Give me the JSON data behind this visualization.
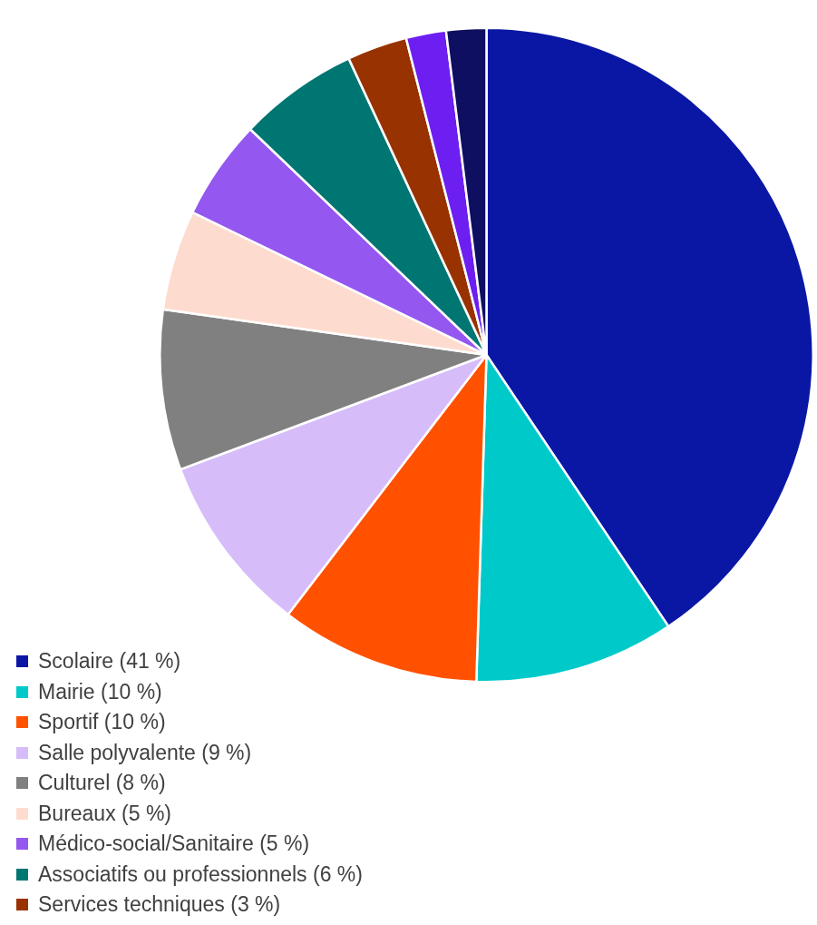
{
  "chart_data": {
    "type": "pie",
    "categories": [
      "Scolaire (41 %)",
      "Mairie (10 %)",
      "Sportif (10 %)",
      "Salle polyvalente (9 %)",
      "Culturel (8 %)",
      "Bureaux (5 %)",
      "Médico-social/Sanitaire (5 %)",
      "Associatifs ou professionnels (6 %)",
      "Services techniques (3 %)",
      null,
      null
    ],
    "values": [
      41,
      10,
      10,
      9,
      8,
      5,
      5,
      6,
      3,
      2,
      2
    ],
    "colors": [
      "#0a17a4",
      "#00c9c9",
      "#ff5100",
      "#d6bdfa",
      "#808080",
      "#fddccf",
      "#9457f0",
      "#007672",
      "#983200",
      "#6c1ff0",
      "#0e0f60"
    ],
    "legend": "bottom left"
  }
}
